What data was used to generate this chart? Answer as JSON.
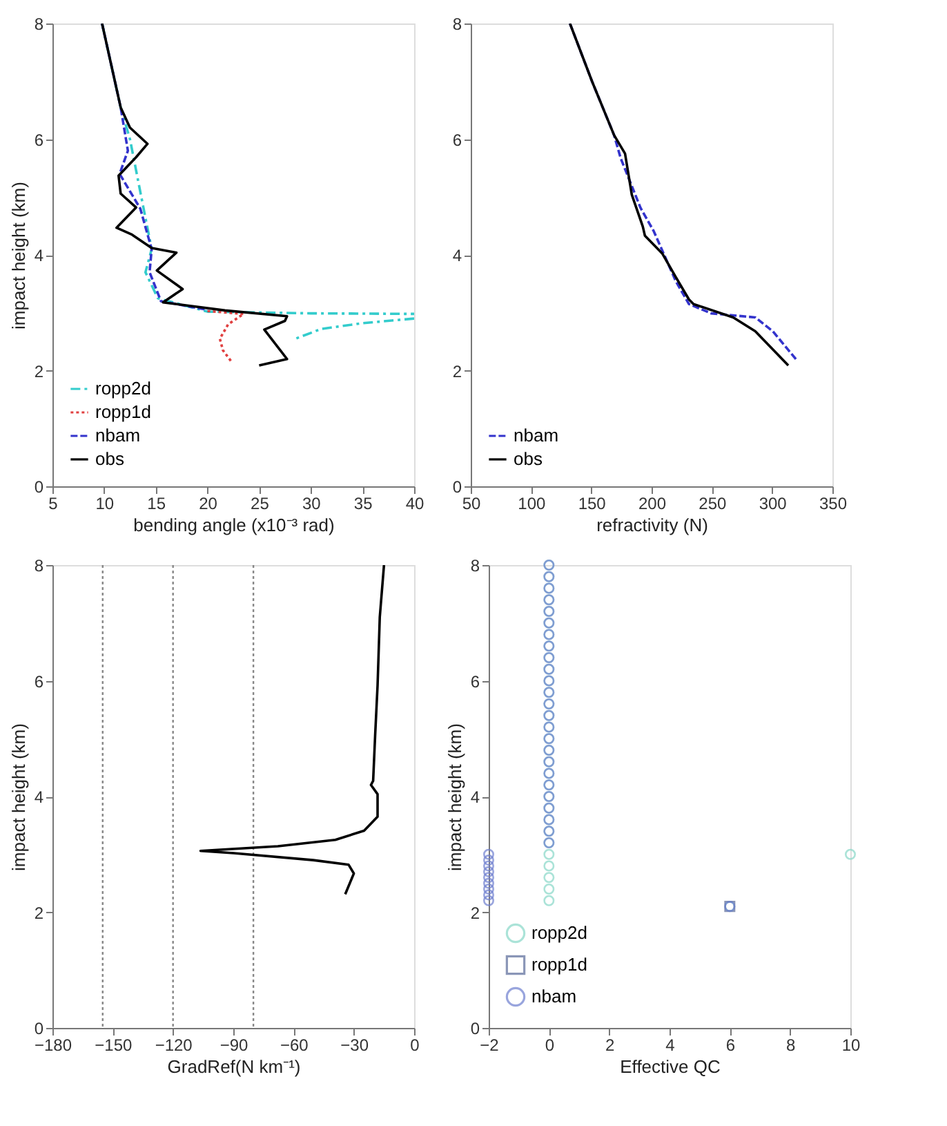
{
  "chart_data": [
    {
      "type": "line",
      "xlabel": "bending angle (x10⁻³ rad)",
      "ylabel": "impact height (km)",
      "xlim": [
        5,
        40
      ],
      "ylim": [
        0,
        8
      ],
      "xticks": [
        5,
        10,
        15,
        20,
        25,
        30,
        35,
        40
      ],
      "yticks": [
        0,
        2,
        4,
        6,
        8
      ],
      "legend": "bottom left",
      "series": [
        {
          "name": "ropp2d",
          "color": "#33cccc",
          "line_style": "dashdot",
          "x": [
            9.8,
            11.6,
            12.5,
            13.6,
            14.6,
            14.0,
            15.2,
            20,
            30,
            40,
            null,
            40,
            35,
            31,
            28.5
          ],
          "values": [
            8,
            6.55,
            6.0,
            5.0,
            4.1,
            3.7,
            3.25,
            3.02,
            2.99,
            2.98,
            null,
            2.9,
            2.82,
            2.72,
            2.55
          ]
        },
        {
          "name": "ropp1d",
          "color": "#e04040",
          "line_style": "dotted",
          "x": [
            20,
            23.5,
            22,
            21.2,
            21.5,
            22.3
          ],
          "values": [
            3.03,
            2.98,
            2.8,
            2.55,
            2.35,
            2.16
          ]
        },
        {
          "name": "nbam",
          "color": "#3333cc",
          "line_style": "dashed",
          "x": [
            9.8,
            11.6,
            12.3,
            11.5,
            13.5,
            14.6,
            14.4,
            15.5,
            20
          ],
          "values": [
            8,
            6.55,
            5.8,
            5.4,
            4.8,
            4.1,
            3.7,
            3.2,
            3.05
          ]
        },
        {
          "name": "obs",
          "color": "#000000",
          "line_style": "solid",
          "x": [
            9.8,
            11.6,
            12.5,
            14.2,
            13.1,
            11.4,
            11.6,
            13.1,
            11.2,
            12.7,
            14.6,
            17.0,
            15.1,
            17.6,
            15.7,
            21.7,
            27.7,
            27.5,
            25.5,
            27.7,
            25.0
          ],
          "values": [
            8,
            6.55,
            6.2,
            5.92,
            5.69,
            5.37,
            5.06,
            4.82,
            4.47,
            4.35,
            4.12,
            4.04,
            3.73,
            3.41,
            3.18,
            3.04,
            2.94,
            2.86,
            2.71,
            2.2,
            2.09
          ]
        }
      ]
    },
    {
      "type": "line",
      "xlabel": "refractivity (N)",
      "xlim": [
        50,
        350
      ],
      "ylim": [
        0,
        8
      ],
      "xticks": [
        50,
        100,
        150,
        200,
        250,
        300,
        350
      ],
      "yticks": [
        0,
        2,
        4,
        6,
        8
      ],
      "legend": "bottom left",
      "series": [
        {
          "name": "nbam",
          "color": "#3333cc",
          "line_style": "dashed",
          "x": [
            132.3,
            150.6,
            168.9,
            174.4,
            190.9,
            201.8,
            220,
            231,
            249.4,
            286,
            300.6,
            320.8
          ],
          "values": [
            8,
            7.0,
            6.07,
            5.67,
            4.81,
            4.41,
            3.55,
            3.15,
            2.99,
            2.92,
            2.68,
            2.17
          ]
        },
        {
          "name": "obs",
          "color": "#000000",
          "line_style": "solid",
          "x": [
            132.3,
            150.6,
            168.9,
            178,
            183.6,
            192.7,
            194.5,
            209,
            220,
            231,
            234.8,
            267.7,
            286,
            313.4
          ],
          "values": [
            8,
            7.0,
            6.07,
            5.75,
            5.04,
            4.49,
            4.33,
            4.02,
            3.62,
            3.23,
            3.15,
            2.92,
            2.68,
            2.09
          ]
        }
      ]
    },
    {
      "type": "line",
      "xlabel": "GradRef(N km⁻¹)",
      "ylabel": "impact height (km)",
      "xlim": [
        -180,
        0
      ],
      "ylim": [
        0,
        8
      ],
      "xticks": [
        -180,
        -150,
        -120,
        -90,
        -60,
        -30,
        0
      ],
      "yticks": [
        0,
        2,
        4,
        6,
        8
      ],
      "ref_lines": [
        {
          "axis": "x",
          "value": -155,
          "color": "#888888",
          "line_style": "dotted"
        },
        {
          "axis": "x",
          "value": -120,
          "color": "#888888",
          "line_style": "dotted"
        },
        {
          "axis": "x",
          "value": -80,
          "color": "#888888",
          "line_style": "dotted"
        }
      ],
      "series": [
        {
          "color": "#000000",
          "line_style": "solid",
          "x": [
            -15.0,
            -17.1,
            -18.2,
            -19.4,
            -20.4,
            -21.5,
            -18.2,
            -18.2,
            -24.9,
            -39.2,
            -67.8,
            -106.3,
            -89.8,
            -50.2,
            -32.6,
            -30,
            -34.3
          ],
          "values": [
            8,
            7.1,
            5.92,
            5.06,
            4.27,
            4.2,
            4.04,
            3.65,
            3.41,
            3.25,
            3.14,
            3.06,
            3.02,
            2.9,
            2.82,
            2.67,
            2.31
          ]
        }
      ]
    },
    {
      "type": "scatter",
      "xlabel": "Effective QC",
      "ylabel": "impact height (km)",
      "xlim": [
        -2,
        10
      ],
      "ylim": [
        0,
        8
      ],
      "xticks": [
        -2,
        0,
        2,
        4,
        6,
        8,
        10
      ],
      "yticks": [
        0,
        2,
        4,
        6,
        8
      ],
      "legend": "bottom left",
      "series": [
        {
          "name": "ropp2d",
          "color": "#88d8c8",
          "marker": "circle",
          "x": [
            0,
            0,
            0,
            0,
            0,
            0,
            0,
            0,
            0,
            0,
            0,
            0,
            0,
            0,
            0,
            0,
            0,
            0,
            0,
            0,
            0,
            0,
            0,
            0,
            0,
            0,
            0,
            0,
            0,
            0,
            6,
            10
          ],
          "values": [
            2.2,
            2.4,
            2.6,
            2.8,
            3.0,
            3.2,
            3.4,
            3.6,
            3.8,
            4.0,
            4.2,
            4.4,
            4.6,
            4.8,
            5.0,
            5.2,
            5.4,
            5.6,
            5.8,
            6.0,
            6.2,
            6.4,
            6.6,
            6.8,
            7.0,
            7.2,
            7.4,
            7.6,
            7.8,
            8.0,
            2.1,
            3.0
          ]
        },
        {
          "name": "ropp1d",
          "color": "#5a6a9a",
          "marker": "square",
          "x": [
            6
          ],
          "values": [
            2.1
          ]
        },
        {
          "name": "nbam",
          "color": "#6f7fd0",
          "marker": "circle",
          "x": [
            -2,
            -2,
            -2,
            -2,
            -2,
            -2,
            -2,
            -2,
            -2,
            0,
            0,
            0,
            0,
            0,
            0,
            0,
            0,
            0,
            0,
            0,
            0,
            0,
            0,
            0,
            0,
            0,
            0,
            0,
            0,
            0,
            0,
            0,
            0,
            0,
            6
          ],
          "values": [
            2.2,
            2.3,
            2.4,
            2.5,
            2.6,
            2.7,
            2.8,
            2.9,
            3.0,
            3.2,
            3.4,
            3.6,
            3.8,
            4.0,
            4.2,
            4.4,
            4.6,
            4.8,
            5.0,
            5.2,
            5.4,
            5.6,
            5.8,
            6.0,
            6.2,
            6.4,
            6.6,
            6.8,
            7.0,
            7.2,
            7.4,
            7.6,
            7.8,
            8.0,
            2.1
          ]
        }
      ]
    }
  ]
}
